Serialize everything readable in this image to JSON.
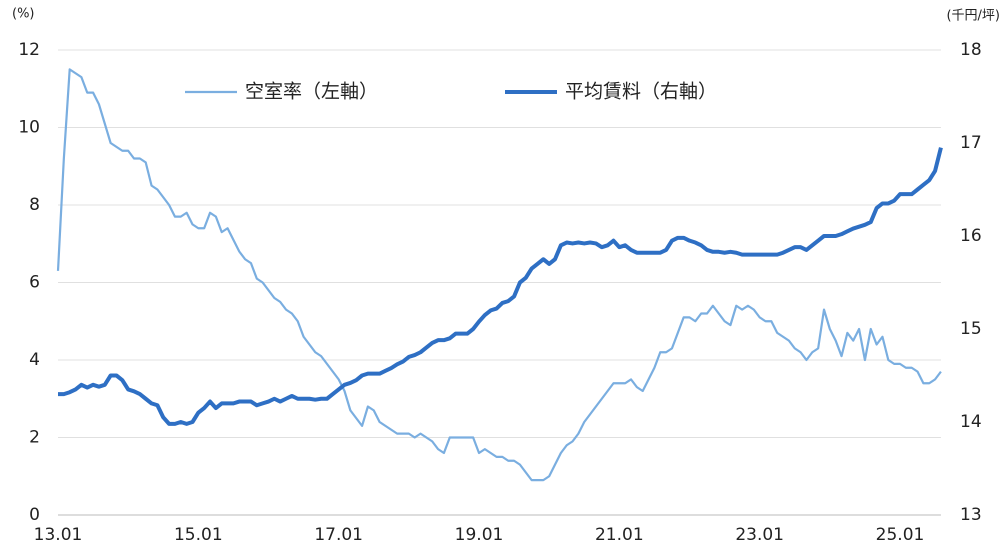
{
  "chart_data": {
    "type": "line",
    "y_label": "(%)",
    "y2_label": "(千円/坪)",
    "categories": [
      "13.01",
      null,
      null,
      null,
      null,
      null,
      null,
      null,
      null,
      null,
      null,
      null,
      null,
      null,
      null,
      null,
      null,
      null,
      null,
      null,
      null,
      null,
      null,
      null,
      "15.01",
      null,
      null,
      null,
      null,
      null,
      null,
      null,
      null,
      null,
      null,
      null,
      null,
      null,
      null,
      null,
      null,
      null,
      null,
      null,
      null,
      null,
      null,
      null,
      "17.01",
      null,
      null,
      null,
      null,
      null,
      null,
      null,
      null,
      null,
      null,
      null,
      null,
      null,
      null,
      null,
      null,
      null,
      null,
      null,
      null,
      null,
      null,
      null,
      "19.01",
      null,
      null,
      null,
      null,
      null,
      null,
      null,
      null,
      null,
      null,
      null,
      null,
      null,
      null,
      null,
      null,
      null,
      null,
      null,
      null,
      null,
      null,
      null,
      "21.01",
      null,
      null,
      null,
      null,
      null,
      null,
      null,
      null,
      null,
      null,
      null,
      null,
      null,
      null,
      null,
      null,
      null,
      null,
      null,
      null,
      null,
      null,
      null,
      "23.01",
      null,
      null,
      null,
      null,
      null,
      null,
      null,
      null,
      null,
      null,
      null,
      null,
      null,
      null,
      null,
      null,
      null,
      null,
      null,
      null,
      null,
      null,
      null,
      "25.01",
      null,
      null,
      null,
      null,
      null,
      null,
      null
    ],
    "series": [
      {
        "name": "空室率（左軸）",
        "color": "#7aaee0",
        "axis": "y",
        "values": [
          6.3,
          9.2,
          11.5,
          11.4,
          11.3,
          10.9,
          10.9,
          10.6,
          10.1,
          9.6,
          9.5,
          9.4,
          9.4,
          9.2,
          9.2,
          9.1,
          8.5,
          8.4,
          8.2,
          8.0,
          7.7,
          7.7,
          7.8,
          7.5,
          7.4,
          7.4,
          7.8,
          7.7,
          7.3,
          7.4,
          7.1,
          6.8,
          6.6,
          6.5,
          6.1,
          6.0,
          5.8,
          5.6,
          5.5,
          5.3,
          5.2,
          5.0,
          4.6,
          4.4,
          4.2,
          4.1,
          3.9,
          3.7,
          3.5,
          3.2,
          2.7,
          2.5,
          2.3,
          2.8,
          2.7,
          2.4,
          2.3,
          2.2,
          2.1,
          2.1,
          2.1,
          2.0,
          2.1,
          2.0,
          1.9,
          1.7,
          1.6,
          2.0,
          2.0,
          2.0,
          2.0,
          2.0,
          1.6,
          1.7,
          1.6,
          1.5,
          1.5,
          1.4,
          1.4,
          1.3,
          1.1,
          0.9,
          0.9,
          0.9,
          1.0,
          1.3,
          1.6,
          1.8,
          1.9,
          2.1,
          2.4,
          2.6,
          2.8,
          3.0,
          3.2,
          3.4,
          3.4,
          3.4,
          3.5,
          3.3,
          3.2,
          3.5,
          3.8,
          4.2,
          4.2,
          4.3,
          4.7,
          5.1,
          5.1,
          5.0,
          5.2,
          5.2,
          5.4,
          5.2,
          5.0,
          4.9,
          5.4,
          5.3,
          5.4,
          5.3,
          5.1,
          5.0,
          5.0,
          4.7,
          4.6,
          4.5,
          4.3,
          4.2,
          4.0,
          4.2,
          4.3,
          5.3,
          4.8,
          4.5,
          4.1,
          4.7,
          4.5,
          4.8,
          4.0,
          4.8,
          4.4,
          4.6,
          4.0,
          3.9,
          3.9,
          3.8,
          3.8,
          3.7,
          3.4,
          3.4,
          3.5,
          3.7
        ]
      },
      {
        "name": "平均賃料（右軸）",
        "color": "#2e6fc4",
        "axis": "y2",
        "values": [
          14.3,
          14.3,
          14.32,
          14.35,
          14.4,
          14.37,
          14.4,
          14.38,
          14.4,
          14.5,
          14.5,
          14.45,
          14.35,
          14.33,
          14.3,
          14.25,
          14.2,
          14.18,
          14.05,
          13.98,
          13.98,
          14.0,
          13.98,
          14.0,
          14.1,
          14.15,
          14.22,
          14.15,
          14.2,
          14.2,
          14.2,
          14.22,
          14.22,
          14.22,
          14.18,
          14.2,
          14.22,
          14.25,
          14.22,
          14.25,
          14.28,
          14.25,
          14.25,
          14.25,
          14.24,
          14.25,
          14.25,
          14.3,
          14.35,
          14.4,
          14.42,
          14.45,
          14.5,
          14.52,
          14.52,
          14.52,
          14.55,
          14.58,
          14.62,
          14.65,
          14.7,
          14.72,
          14.75,
          14.8,
          14.85,
          14.88,
          14.88,
          14.9,
          14.95,
          14.95,
          14.95,
          15.0,
          15.08,
          15.15,
          15.2,
          15.22,
          15.28,
          15.3,
          15.35,
          15.5,
          15.55,
          15.65,
          15.7,
          15.75,
          15.7,
          15.75,
          15.9,
          15.93,
          15.92,
          15.93,
          15.92,
          15.93,
          15.92,
          15.88,
          15.9,
          15.95,
          15.88,
          15.9,
          15.85,
          15.82,
          15.82,
          15.82,
          15.82,
          15.82,
          15.85,
          15.95,
          15.98,
          15.98,
          15.95,
          15.93,
          15.9,
          15.85,
          15.83,
          15.83,
          15.82,
          15.83,
          15.82,
          15.8,
          15.8,
          15.8,
          15.8,
          15.8,
          15.8,
          15.8,
          15.82,
          15.85,
          15.88,
          15.88,
          15.85,
          15.9,
          15.95,
          16.0,
          16.0,
          16.0,
          16.02,
          16.05,
          16.08,
          16.1,
          16.12,
          16.15,
          16.3,
          16.35,
          16.35,
          16.38,
          16.45,
          16.45,
          16.45,
          16.5,
          16.55,
          16.6,
          16.7,
          16.95
        ]
      }
    ],
    "ylim": [
      0,
      12
    ],
    "yticks": [
      0,
      2,
      4,
      6,
      8,
      10,
      12
    ],
    "y2lim": [
      13,
      18
    ],
    "y2ticks": [
      13,
      14,
      15,
      16,
      17,
      18
    ],
    "grid": true
  }
}
